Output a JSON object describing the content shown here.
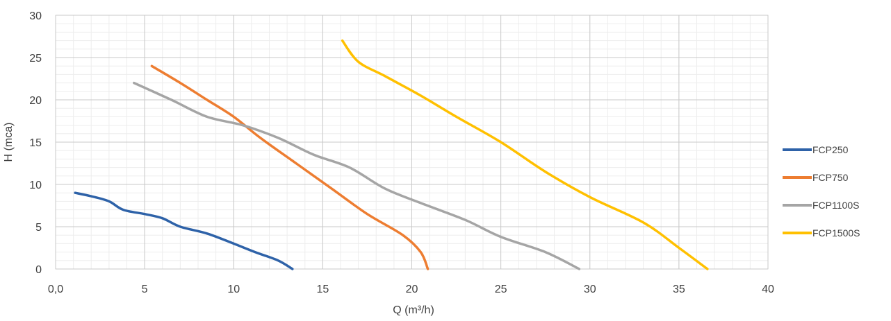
{
  "chart_data": {
    "type": "line",
    "title": "",
    "xlabel": "Q (m³/h)",
    "ylabel": "H (mca)",
    "xlim": [
      0,
      40
    ],
    "ylim": [
      0,
      30
    ],
    "x_ticks": [
      0,
      5,
      10,
      15,
      20,
      25,
      30,
      35,
      40
    ],
    "x_tick_labels": [
      "0,0",
      "5",
      "10",
      "15",
      "20",
      "25",
      "30",
      "35",
      "40"
    ],
    "y_ticks": [
      0,
      5,
      10,
      15,
      20,
      25,
      30
    ],
    "y_tick_labels": [
      "0",
      "5",
      "10",
      "15",
      "20",
      "25",
      "30"
    ],
    "grid": true,
    "legend_position": "right",
    "series": [
      {
        "name": "FCP250",
        "color": "#2e62a8",
        "points": [
          [
            1.1,
            9.0
          ],
          [
            2.0,
            8.6
          ],
          [
            3.0,
            8.0
          ],
          [
            3.8,
            7.0
          ],
          [
            5.0,
            6.5
          ],
          [
            6.0,
            6.0
          ],
          [
            7.0,
            5.0
          ],
          [
            8.5,
            4.2
          ],
          [
            10.0,
            3.0
          ],
          [
            11.2,
            2.0
          ],
          [
            12.5,
            1.0
          ],
          [
            13.3,
            0.0
          ]
        ]
      },
      {
        "name": "FCP750",
        "color": "#ed7d31",
        "points": [
          [
            5.4,
            24.0
          ],
          [
            7.0,
            22.0
          ],
          [
            8.5,
            20.0
          ],
          [
            10.0,
            18.0
          ],
          [
            11.5,
            15.5
          ],
          [
            13.5,
            12.5
          ],
          [
            15.5,
            9.5
          ],
          [
            17.5,
            6.5
          ],
          [
            19.5,
            4.0
          ],
          [
            20.5,
            2.0
          ],
          [
            20.9,
            0.0
          ]
        ]
      },
      {
        "name": "FCP1100S",
        "color": "#a5a5a5",
        "points": [
          [
            4.4,
            22.0
          ],
          [
            6.5,
            20.0
          ],
          [
            8.5,
            18.0
          ],
          [
            10.5,
            17.0
          ],
          [
            12.5,
            15.5
          ],
          [
            14.5,
            13.5
          ],
          [
            16.5,
            12.0
          ],
          [
            18.5,
            9.5
          ],
          [
            20.5,
            7.8
          ],
          [
            23.0,
            5.8
          ],
          [
            25.0,
            3.8
          ],
          [
            27.5,
            2.0
          ],
          [
            29.4,
            0.0
          ]
        ]
      },
      {
        "name": "FCP1500S",
        "color": "#ffc000",
        "points": [
          [
            16.1,
            27.0
          ],
          [
            17.0,
            24.5
          ],
          [
            18.5,
            22.8
          ],
          [
            20.5,
            20.5
          ],
          [
            22.5,
            18.0
          ],
          [
            25.0,
            15.0
          ],
          [
            27.5,
            11.5
          ],
          [
            30.0,
            8.5
          ],
          [
            33.0,
            5.5
          ],
          [
            35.0,
            2.5
          ],
          [
            36.6,
            0.0
          ]
        ]
      }
    ]
  }
}
